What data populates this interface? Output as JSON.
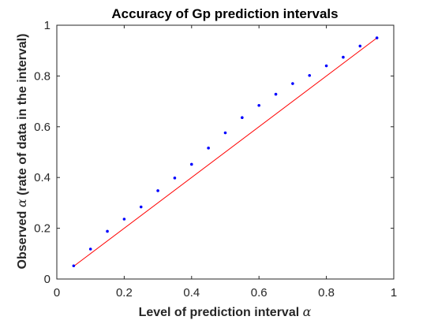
{
  "chart_data": {
    "type": "scatter",
    "title": "Accuracy of Gp prediction intervals",
    "xlabel": {
      "text": "Level of prediction interval ",
      "symbol": "α"
    },
    "ylabel": {
      "before": "Observed ",
      "symbol": "α",
      "after": " (rate of data in the interval)"
    },
    "xlim": [
      0,
      1
    ],
    "ylim": [
      0,
      1
    ],
    "xticks": [
      0,
      0.2,
      0.4,
      0.6,
      0.8,
      1
    ],
    "yticks": [
      0,
      0.2,
      0.4,
      0.6,
      0.8,
      1
    ],
    "xtick_labels": [
      "0",
      "0.2",
      "0.4",
      "0.6",
      "0.8",
      "1"
    ],
    "ytick_labels": [
      "0",
      "0.2",
      "0.4",
      "0.6",
      "0.8",
      "1"
    ],
    "grid": false,
    "series": [
      {
        "kind": "points",
        "color": "#0000ff",
        "x": [
          0.05,
          0.1,
          0.15,
          0.2,
          0.25,
          0.3,
          0.35,
          0.4,
          0.45,
          0.5,
          0.55,
          0.6,
          0.65,
          0.7,
          0.75,
          0.8,
          0.85,
          0.9,
          0.95
        ],
        "y": [
          0.052,
          0.118,
          0.188,
          0.236,
          0.284,
          0.348,
          0.398,
          0.452,
          0.516,
          0.576,
          0.636,
          0.684,
          0.728,
          0.77,
          0.802,
          0.84,
          0.874,
          0.918,
          0.95
        ]
      },
      {
        "kind": "line",
        "color": "#ff0000",
        "x": [
          0.05,
          0.95
        ],
        "y": [
          0.05,
          0.95
        ]
      }
    ]
  }
}
